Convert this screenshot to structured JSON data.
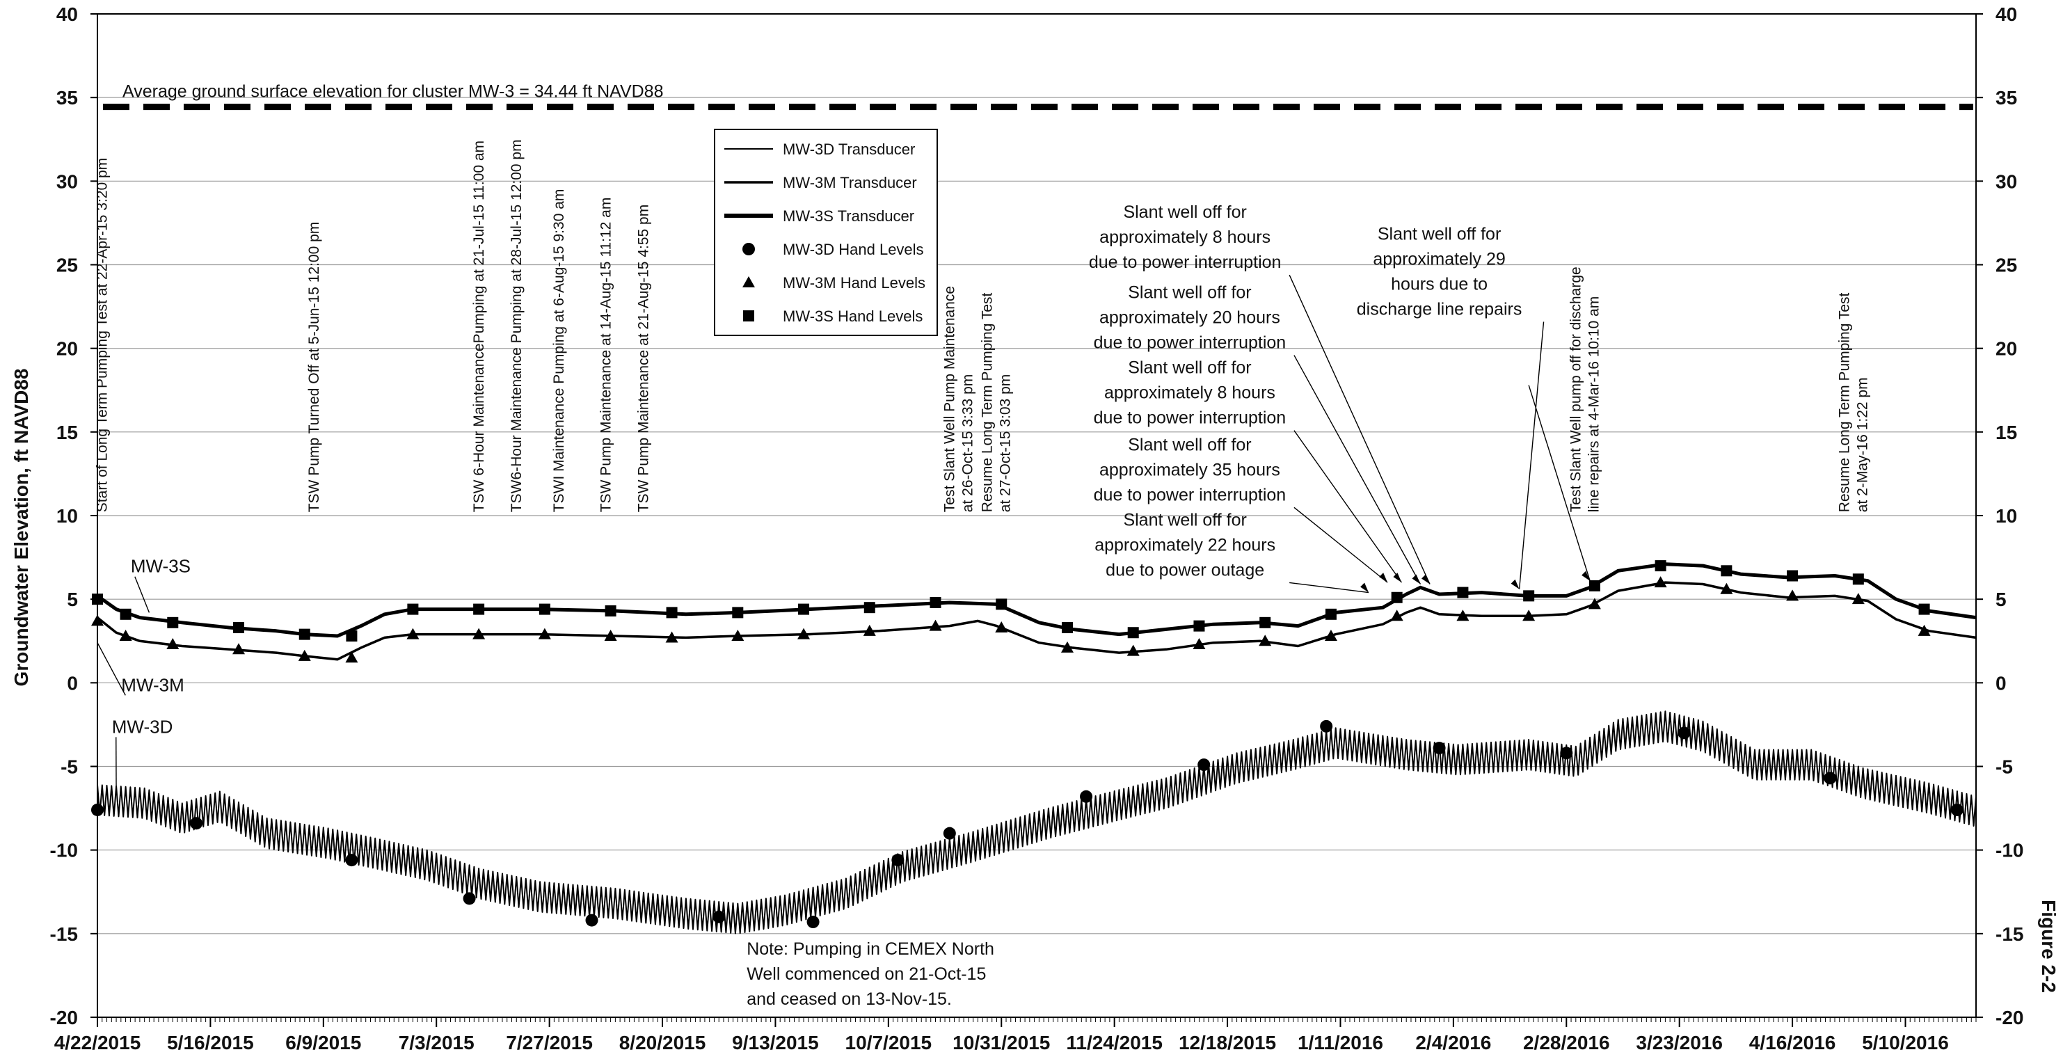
{
  "chart_data": {
    "type": "line",
    "ylabel": "Groundwater Elevation, ft NAVD88",
    "ylim": [
      -20,
      40
    ],
    "y_ticks": [
      -20,
      -15,
      -10,
      -5,
      0,
      5,
      10,
      15,
      20,
      25,
      30,
      35,
      40
    ],
    "x_tick_labels": [
      "4/22/2015",
      "5/16/2015",
      "6/9/2015",
      "7/3/2015",
      "7/27/2015",
      "8/20/2015",
      "9/13/2015",
      "10/7/2015",
      "10/31/2015",
      "11/24/2015",
      "12/18/2015",
      "1/11/2016",
      "2/4/2016",
      "2/28/2016",
      "3/23/2016",
      "4/16/2016",
      "5/10/2016"
    ],
    "x_start": "2015-04-22",
    "x_end": "2016-05-25",
    "figure_label": "Figure 2-2",
    "ground_surface": {
      "value": 34.44,
      "label": "Average ground surface elevation for cluster MW-3 = 34.44 ft NAVD88"
    },
    "legend": [
      {
        "name": "MW-3D Transducer",
        "kind": "line",
        "weight": "thin"
      },
      {
        "name": "MW-3M Transducer",
        "kind": "line",
        "weight": "medium"
      },
      {
        "name": "MW-3S Transducer",
        "kind": "line",
        "weight": "thick"
      },
      {
        "name": "MW-3D Hand Levels",
        "kind": "circle"
      },
      {
        "name": "MW-3M Hand Levels",
        "kind": "triangle"
      },
      {
        "name": "MW-3S Hand Levels",
        "kind": "square"
      }
    ],
    "series_labels": {
      "MW-3S": "MW-3S",
      "MW-3M": "MW-3M",
      "MW-3D": "MW-3D"
    },
    "series": [
      {
        "name": "MW-3S Transducer",
        "points": [
          [
            "2015-04-22",
            5.2
          ],
          [
            "2015-04-26",
            4.4
          ],
          [
            "2015-05-01",
            3.9
          ],
          [
            "2015-05-10",
            3.6
          ],
          [
            "2015-05-20",
            3.3
          ],
          [
            "2015-05-30",
            3.1
          ],
          [
            "2015-06-05",
            2.9
          ],
          [
            "2015-06-12",
            2.8
          ],
          [
            "2015-06-17",
            3.4
          ],
          [
            "2015-06-22",
            4.1
          ],
          [
            "2015-06-28",
            4.4
          ],
          [
            "2015-07-10",
            4.4
          ],
          [
            "2015-07-25",
            4.4
          ],
          [
            "2015-08-10",
            4.3
          ],
          [
            "2015-08-25",
            4.1
          ],
          [
            "2015-09-05",
            4.2
          ],
          [
            "2015-09-20",
            4.4
          ],
          [
            "2015-10-05",
            4.6
          ],
          [
            "2015-10-20",
            4.8
          ],
          [
            "2015-10-30",
            4.7
          ],
          [
            "2015-11-08",
            3.6
          ],
          [
            "2015-11-15",
            3.2
          ],
          [
            "2015-11-25",
            2.9
          ],
          [
            "2015-12-05",
            3.2
          ],
          [
            "2015-12-15",
            3.5
          ],
          [
            "2015-12-25",
            3.6
          ],
          [
            "2016-01-02",
            3.4
          ],
          [
            "2016-01-10",
            4.2
          ],
          [
            "2016-01-20",
            4.5
          ],
          [
            "2016-01-25",
            5.3
          ],
          [
            "2016-01-28",
            5.7
          ],
          [
            "2016-02-01",
            5.3
          ],
          [
            "2016-02-10",
            5.4
          ],
          [
            "2016-02-20",
            5.2
          ],
          [
            "2016-02-28",
            5.2
          ],
          [
            "2016-03-04",
            5.7
          ],
          [
            "2016-03-10",
            6.7
          ],
          [
            "2016-03-20",
            7.1
          ],
          [
            "2016-03-28",
            7.0
          ],
          [
            "2016-04-05",
            6.5
          ],
          [
            "2016-04-15",
            6.3
          ],
          [
            "2016-04-25",
            6.4
          ],
          [
            "2016-05-02",
            6.1
          ],
          [
            "2016-05-08",
            5.0
          ],
          [
            "2016-05-15",
            4.3
          ],
          [
            "2016-05-25",
            3.9
          ]
        ]
      },
      {
        "name": "MW-3M Transducer",
        "points": [
          [
            "2015-04-22",
            3.9
          ],
          [
            "2015-04-26",
            3.0
          ],
          [
            "2015-05-01",
            2.5
          ],
          [
            "2015-05-10",
            2.2
          ],
          [
            "2015-05-20",
            2.0
          ],
          [
            "2015-05-30",
            1.8
          ],
          [
            "2015-06-05",
            1.6
          ],
          [
            "2015-06-12",
            1.4
          ],
          [
            "2015-06-17",
            2.1
          ],
          [
            "2015-06-22",
            2.7
          ],
          [
            "2015-06-28",
            2.9
          ],
          [
            "2015-07-10",
            2.9
          ],
          [
            "2015-07-25",
            2.9
          ],
          [
            "2015-08-10",
            2.8
          ],
          [
            "2015-08-25",
            2.7
          ],
          [
            "2015-09-05",
            2.8
          ],
          [
            "2015-09-20",
            2.9
          ],
          [
            "2015-10-05",
            3.1
          ],
          [
            "2015-10-20",
            3.4
          ],
          [
            "2015-10-26",
            3.7
          ],
          [
            "2015-10-30",
            3.4
          ],
          [
            "2015-11-08",
            2.4
          ],
          [
            "2015-11-15",
            2.1
          ],
          [
            "2015-11-25",
            1.8
          ],
          [
            "2015-12-05",
            2.0
          ],
          [
            "2015-12-15",
            2.4
          ],
          [
            "2015-12-25",
            2.5
          ],
          [
            "2016-01-02",
            2.2
          ],
          [
            "2016-01-10",
            2.9
          ],
          [
            "2016-01-20",
            3.5
          ],
          [
            "2016-01-25",
            4.2
          ],
          [
            "2016-01-28",
            4.5
          ],
          [
            "2016-02-01",
            4.1
          ],
          [
            "2016-02-10",
            4.0
          ],
          [
            "2016-02-20",
            4.0
          ],
          [
            "2016-02-28",
            4.1
          ],
          [
            "2016-03-04",
            4.6
          ],
          [
            "2016-03-10",
            5.5
          ],
          [
            "2016-03-20",
            6.0
          ],
          [
            "2016-03-28",
            5.9
          ],
          [
            "2016-04-05",
            5.4
          ],
          [
            "2016-04-15",
            5.1
          ],
          [
            "2016-04-25",
            5.2
          ],
          [
            "2016-05-02",
            4.9
          ],
          [
            "2016-05-08",
            3.8
          ],
          [
            "2016-05-15",
            3.1
          ],
          [
            "2016-05-25",
            2.7
          ]
        ]
      },
      {
        "name": "MW-3D Transducer",
        "oscillation": 0.9,
        "points": [
          [
            "2015-04-22",
            -7.0
          ],
          [
            "2015-05-02",
            -7.2
          ],
          [
            "2015-05-10",
            -8.1
          ],
          [
            "2015-05-18",
            -7.4
          ],
          [
            "2015-05-28",
            -9.0
          ],
          [
            "2015-06-10",
            -9.6
          ],
          [
            "2015-06-20",
            -10.2
          ],
          [
            "2015-07-01",
            -10.9
          ],
          [
            "2015-07-12",
            -12.0
          ],
          [
            "2015-07-25",
            -12.8
          ],
          [
            "2015-08-10",
            -13.2
          ],
          [
            "2015-08-25",
            -13.8
          ],
          [
            "2015-09-05",
            -14.1
          ],
          [
            "2015-09-15",
            -13.6
          ],
          [
            "2015-09-28",
            -12.6
          ],
          [
            "2015-10-10",
            -11.0
          ],
          [
            "2015-10-25",
            -9.8
          ],
          [
            "2015-11-10",
            -8.4
          ],
          [
            "2015-11-25",
            -7.3
          ],
          [
            "2015-12-05",
            -6.6
          ],
          [
            "2015-12-20",
            -5.1
          ],
          [
            "2016-01-01",
            -4.3
          ],
          [
            "2016-01-10",
            -3.6
          ],
          [
            "2016-01-25",
            -4.3
          ],
          [
            "2016-02-05",
            -4.6
          ],
          [
            "2016-02-20",
            -4.3
          ],
          [
            "2016-03-01",
            -4.7
          ],
          [
            "2016-03-10",
            -3.1
          ],
          [
            "2016-03-20",
            -2.6
          ],
          [
            "2016-03-28",
            -3.2
          ],
          [
            "2016-04-08",
            -4.9
          ],
          [
            "2016-04-20",
            -4.9
          ],
          [
            "2016-05-01",
            -6.0
          ],
          [
            "2016-05-15",
            -6.9
          ],
          [
            "2016-05-25",
            -7.7
          ]
        ]
      }
    ],
    "hand_levels": {
      "MW-3S": [
        [
          "2015-04-22",
          5.0
        ],
        [
          "2015-04-28",
          4.1
        ],
        [
          "2015-05-08",
          3.6
        ],
        [
          "2015-05-22",
          3.3
        ],
        [
          "2015-06-05",
          2.9
        ],
        [
          "2015-06-15",
          2.8
        ],
        [
          "2015-06-28",
          4.4
        ],
        [
          "2015-07-12",
          4.4
        ],
        [
          "2015-07-26",
          4.4
        ],
        [
          "2015-08-09",
          4.3
        ],
        [
          "2015-08-22",
          4.2
        ],
        [
          "2015-09-05",
          4.2
        ],
        [
          "2015-09-19",
          4.4
        ],
        [
          "2015-10-03",
          4.5
        ],
        [
          "2015-10-17",
          4.8
        ],
        [
          "2015-10-31",
          4.7
        ],
        [
          "2015-11-14",
          3.3
        ],
        [
          "2015-11-28",
          3.0
        ],
        [
          "2015-12-12",
          3.4
        ],
        [
          "2015-12-26",
          3.6
        ],
        [
          "2016-01-09",
          4.1
        ],
        [
          "2016-01-23",
          5.1
        ],
        [
          "2016-02-06",
          5.4
        ],
        [
          "2016-02-20",
          5.2
        ],
        [
          "2016-03-05",
          5.8
        ],
        [
          "2016-03-19",
          7.0
        ],
        [
          "2016-04-02",
          6.7
        ],
        [
          "2016-04-16",
          6.4
        ],
        [
          "2016-04-30",
          6.2
        ],
        [
          "2016-05-14",
          4.4
        ]
      ],
      "MW-3M": [
        [
          "2015-04-22",
          3.7
        ],
        [
          "2015-04-28",
          2.8
        ],
        [
          "2015-05-08",
          2.3
        ],
        [
          "2015-05-22",
          2.0
        ],
        [
          "2015-06-05",
          1.6
        ],
        [
          "2015-06-15",
          1.5
        ],
        [
          "2015-06-28",
          2.9
        ],
        [
          "2015-07-12",
          2.9
        ],
        [
          "2015-07-26",
          2.9
        ],
        [
          "2015-08-09",
          2.8
        ],
        [
          "2015-08-22",
          2.7
        ],
        [
          "2015-09-05",
          2.8
        ],
        [
          "2015-09-19",
          2.9
        ],
        [
          "2015-10-03",
          3.1
        ],
        [
          "2015-10-17",
          3.4
        ],
        [
          "2015-10-31",
          3.3
        ],
        [
          "2015-11-14",
          2.1
        ],
        [
          "2015-11-28",
          1.9
        ],
        [
          "2015-12-12",
          2.3
        ],
        [
          "2015-12-26",
          2.5
        ],
        [
          "2016-01-09",
          2.8
        ],
        [
          "2016-01-23",
          4.0
        ],
        [
          "2016-02-06",
          4.0
        ],
        [
          "2016-02-20",
          4.0
        ],
        [
          "2016-03-05",
          4.7
        ],
        [
          "2016-03-19",
          6.0
        ],
        [
          "2016-04-02",
          5.6
        ],
        [
          "2016-04-16",
          5.2
        ],
        [
          "2016-04-30",
          5.0
        ],
        [
          "2016-05-14",
          3.1
        ]
      ],
      "MW-3D": [
        [
          "2015-04-22",
          -7.6
        ],
        [
          "2015-05-13",
          -8.4
        ],
        [
          "2015-06-15",
          -10.6
        ],
        [
          "2015-07-10",
          -12.9
        ],
        [
          "2015-08-05",
          -14.2
        ],
        [
          "2015-09-01",
          -14.0
        ],
        [
          "2015-09-21",
          -14.3
        ],
        [
          "2015-10-09",
          -10.6
        ],
        [
          "2015-10-20",
          -9.0
        ],
        [
          "2015-11-18",
          -6.8
        ],
        [
          "2015-12-13",
          -4.9
        ],
        [
          "2016-01-08",
          -2.6
        ],
        [
          "2016-02-01",
          -3.9
        ],
        [
          "2016-02-28",
          -4.2
        ],
        [
          "2016-03-24",
          -3.0
        ],
        [
          "2016-04-24",
          -5.7
        ],
        [
          "2016-05-21",
          -7.6
        ]
      ]
    },
    "vertical_annotations": [
      {
        "lines": [
          "Start of Long Term Pumping Test at 22-Apr-15 3:20 pm"
        ],
        "date": "2015-04-24"
      },
      {
        "lines": [
          "TSW Pump Turned Off at 5-Jun-15 12:00 pm"
        ],
        "date": "2015-06-08"
      },
      {
        "lines": [
          "TSW 6-Hour MaintenancePumping at 21-Jul-15 11:00 am"
        ],
        "date": "2015-07-13"
      },
      {
        "lines": [
          "TSW6-Hour Maintenance Pumping at 28-Jul-15 12:00 pm"
        ],
        "date": "2015-07-21"
      },
      {
        "lines": [
          "TSWI Maintenance Pumping at 6-Aug-15 9:30 am"
        ],
        "date": "2015-07-30"
      },
      {
        "lines": [
          "TSW Pump Maintenance at 14-Aug-15 11:12 am"
        ],
        "date": "2015-08-09"
      },
      {
        "lines": [
          "TSW Pump Maintenance at 21-Aug-15 4:55 pm"
        ],
        "date": "2015-08-17"
      },
      {
        "lines": [
          "Test Slant Well Pump Maintenance",
          "at 26-Oct-15 3:33 pm"
        ],
        "date": "2015-10-21"
      },
      {
        "lines": [
          "Resume Long Term Pumping Test",
          "at 27-Oct-15 3:03 pm"
        ],
        "date": "2015-10-29"
      },
      {
        "lines": [
          "Test Slant Well pump off for discharge",
          "line repairs at 4-Mar-16 10:10 am"
        ],
        "date": "2016-03-02"
      },
      {
        "lines": [
          "Resume Long Term Pumping Test",
          "at 2-May-16 1:22 pm"
        ],
        "date": "2016-04-28"
      }
    ],
    "callouts": [
      {
        "lines": [
          "Slant well off  for",
          "approximately 8 hours",
          "due to power interruption"
        ],
        "text_date": "2015-12-09",
        "text_y": 27.8,
        "target_date": "2016-01-30",
        "target_y": 5.9
      },
      {
        "lines": [
          "Slant well off  for",
          "approximately 29",
          "hours due to",
          "discharge line repairs"
        ],
        "text_date": "2016-02-01",
        "text_y": 26.5,
        "target_date": "2016-02-18",
        "target_y": 5.6
      },
      {
        "lines": [
          "Slant well off  for",
          "approximately 20 hours",
          "due to power interruption"
        ],
        "text_date": "2015-12-10",
        "text_y": 23.0,
        "target_date": "2016-01-28",
        "target_y": 5.9
      },
      {
        "lines": [
          "Slant well off  for",
          "approximately 8 hours",
          "due to power interruption"
        ],
        "text_date": "2015-12-10",
        "text_y": 18.5,
        "target_date": "2016-01-24",
        "target_y": 6.0
      },
      {
        "lines": [
          "Slant well off  for",
          "approximately 35 hours",
          "due to power interruption"
        ],
        "text_date": "2015-12-10",
        "text_y": 13.9,
        "target_date": "2016-01-21",
        "target_y": 6.0
      },
      {
        "lines": [
          "Slant well off  for",
          "approximately 22 hours",
          "due to power outage"
        ],
        "text_date": "2015-12-09",
        "text_y": 9.4,
        "target_date": "2016-01-17",
        "target_y": 5.4
      },
      {
        "lines": [
          "Test Slant Well pump off for discharge"
        ],
        "text_date": "2016-02-20",
        "text_y": 17.8,
        "target_date": "2016-03-04",
        "target_y": 6.1,
        "arrow_only": true
      }
    ],
    "note": {
      "lines": [
        "Note: Pumping in CEMEX North",
        "Well commenced on 21-Oct-15",
        "and ceased on 13-Nov-15."
      ],
      "date": "2015-09-01",
      "y": -15.0
    },
    "series_label_positions": [
      {
        "key": "MW-3S",
        "date": "2015-04-27",
        "y": 6.6,
        "target_date": "2015-05-03",
        "target_y": 4.2
      },
      {
        "key": "MW-3M",
        "date": "2015-04-25",
        "y": -0.5,
        "target_date": "2015-04-22",
        "target_y": 2.4
      },
      {
        "key": "MW-3D",
        "date": "2015-04-23",
        "y": -3.0,
        "target_date": "2015-04-26",
        "target_y": -6.3
      }
    ]
  }
}
